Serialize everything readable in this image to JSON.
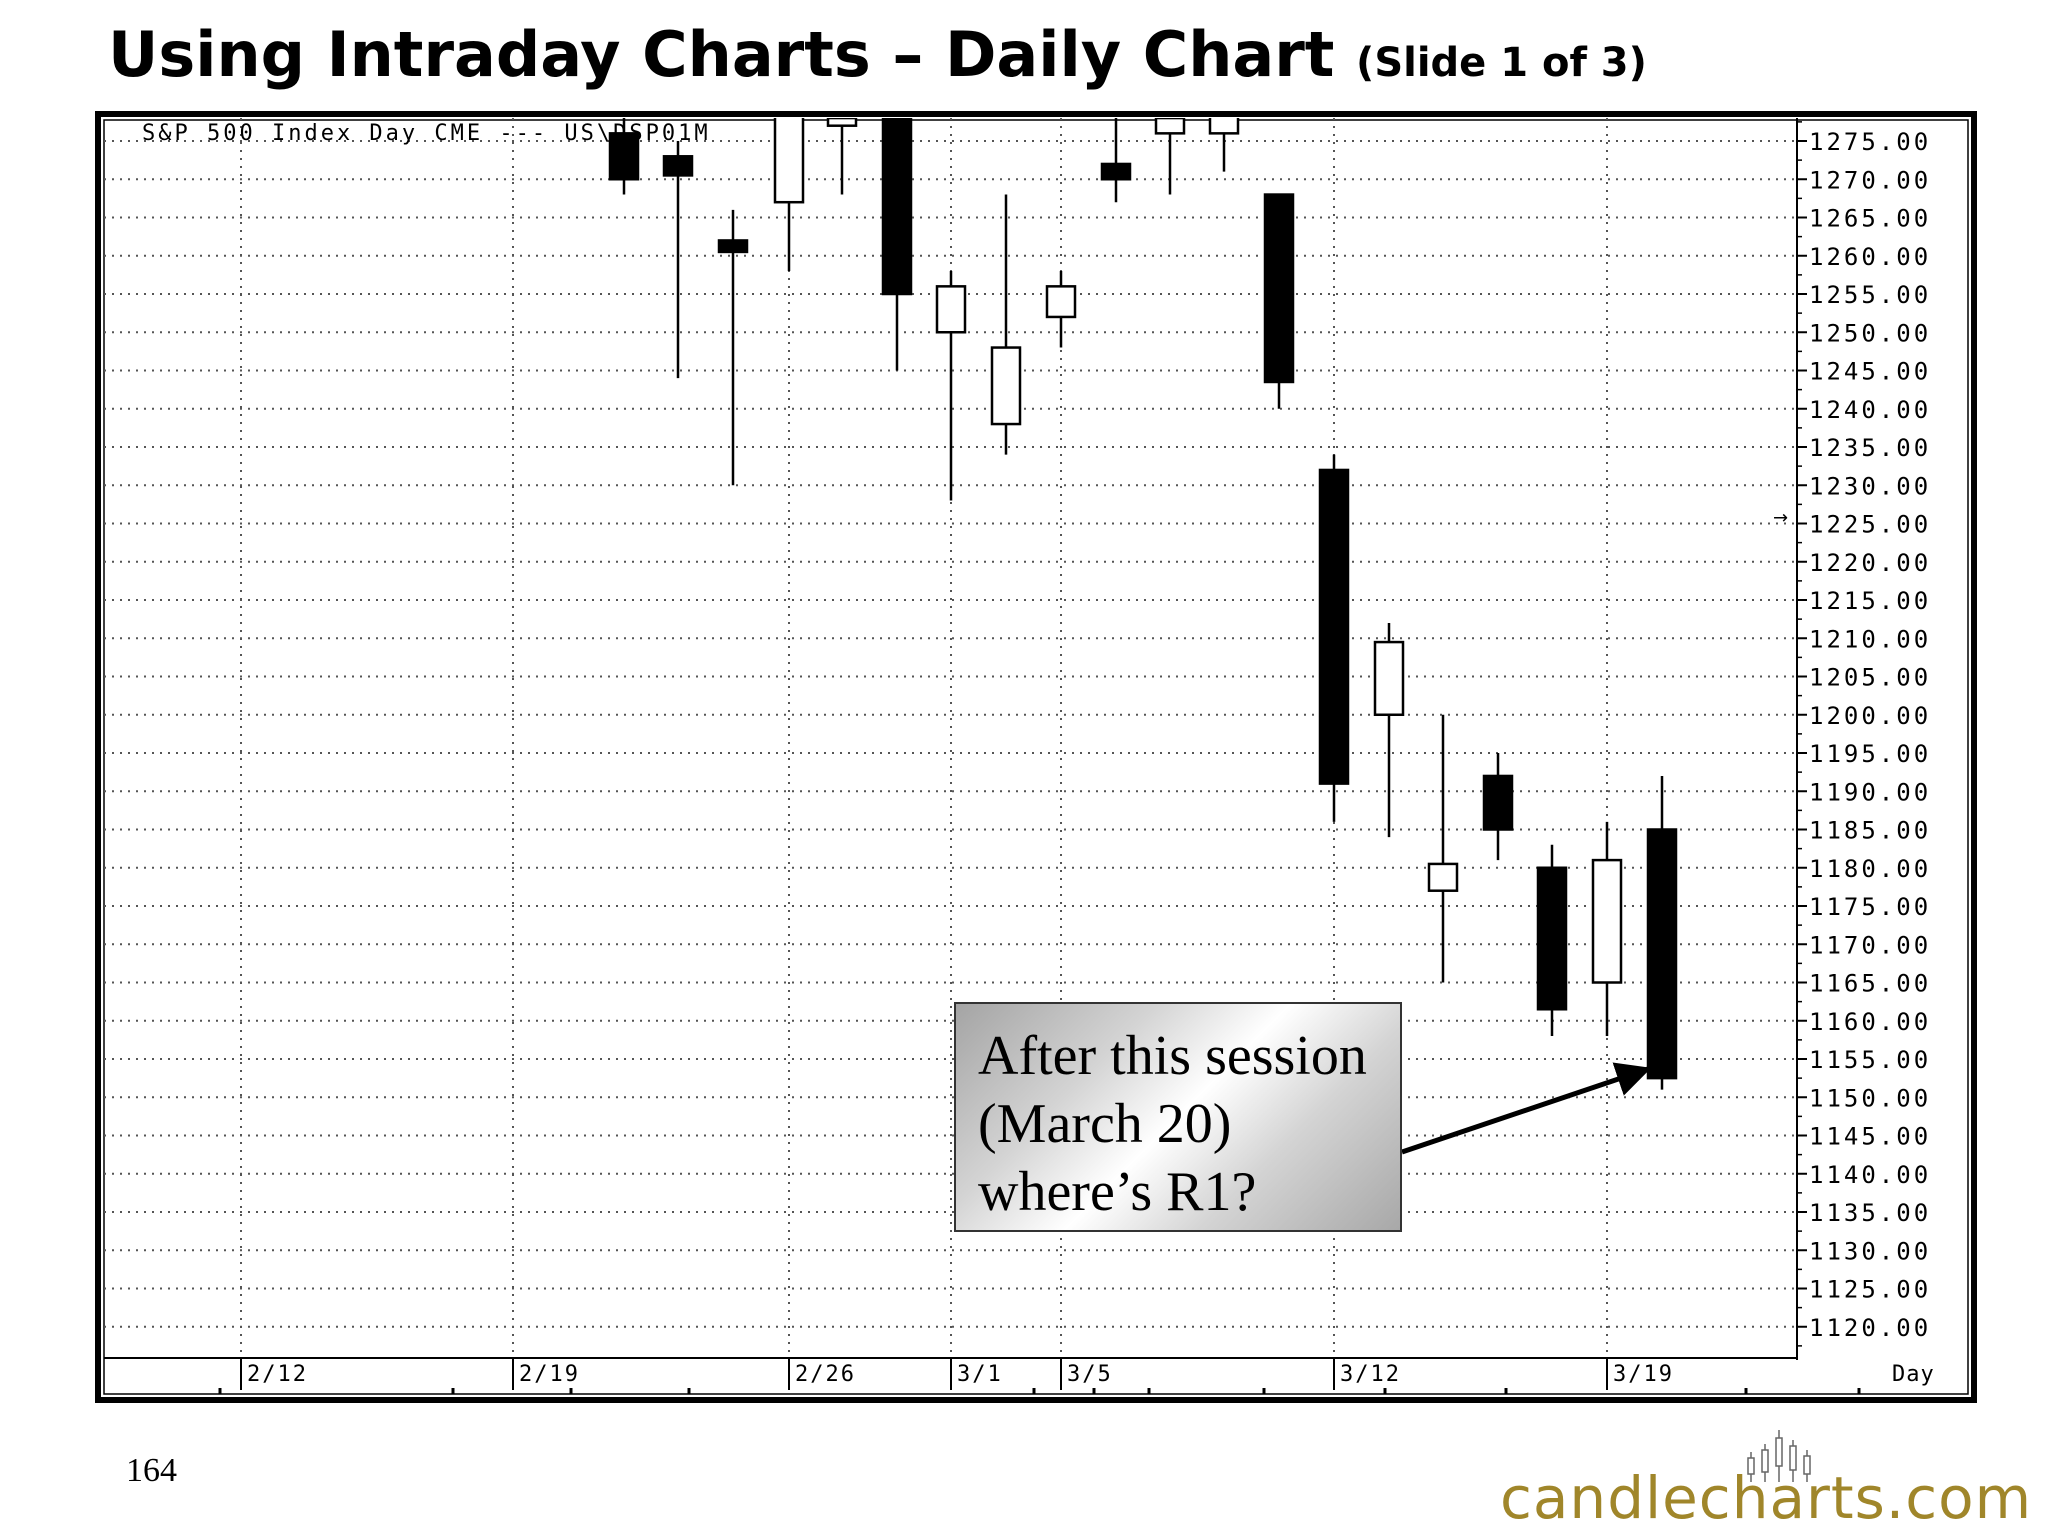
{
  "slide": {
    "title": "Using Intraday Charts – Daily Chart",
    "subtitle": "(Slide 1 of 3)",
    "page_number": "164",
    "logo_text": "candlecharts.com"
  },
  "annotation": {
    "lines": [
      "After this session",
      "(March 20)",
      "where’s R1?"
    ]
  },
  "chart_data": {
    "type": "candlestick",
    "title": "S&P 500 Index Day CME --- US\\DSP01M",
    "x_axis_label": "Day",
    "price_range": [
      1117,
      1278
    ],
    "grid": true,
    "y_ticks": [
      "1275.00",
      "1270.00",
      "1265.00",
      "1260.00",
      "1255.00",
      "1250.00",
      "1245.00",
      "1240.00",
      "1235.00",
      "1230.00",
      "1225.00",
      "1220.00",
      "1215.00",
      "1210.00",
      "1205.00",
      "1200.00",
      "1195.00",
      "1190.00",
      "1185.00",
      "1180.00",
      "1175.00",
      "1170.00",
      "1165.00",
      "1160.00",
      "1155.00",
      "1150.00",
      "1145.00",
      "1140.00",
      "1135.00",
      "1130.00",
      "1125.00",
      "1120.00"
    ],
    "x_labels": [
      {
        "label": "2/12",
        "at": "2/12"
      },
      {
        "label": "2/19",
        "at": "2/19"
      },
      {
        "label": "2/26",
        "at": "2/26"
      },
      {
        "label": "3/1",
        "at": "3/1"
      },
      {
        "label": "3/5",
        "at": "3/5"
      },
      {
        "label": "3/12",
        "at": "3/12"
      },
      {
        "label": "3/19",
        "at": "3/19"
      }
    ],
    "last_price_marker": 1225.8,
    "candles": [
      {
        "date": "2/21",
        "open": 1276,
        "high": 1279,
        "low": 1268,
        "close": 1270
      },
      {
        "date": "2/22",
        "open": 1273,
        "high": 1275,
        "low": 1244,
        "close": 1270.5
      },
      {
        "date": "2/23",
        "open": 1262,
        "high": 1266,
        "low": 1230,
        "close": 1260.5
      },
      {
        "date": "2/26",
        "open": 1267,
        "high": 1283,
        "low": 1258,
        "close": 1280
      },
      {
        "date": "2/27",
        "open": 1277,
        "high": 1283,
        "low": 1268,
        "close": 1278
      },
      {
        "date": "2/28",
        "open": 1280,
        "high": 1287,
        "low": 1245,
        "close": 1255
      },
      {
        "date": "3/1",
        "open": 1250,
        "high": 1258,
        "low": 1228,
        "close": 1256
      },
      {
        "date": "3/2",
        "open": 1238,
        "high": 1268,
        "low": 1234,
        "close": 1248
      },
      {
        "date": "3/5",
        "open": 1252,
        "high": 1258,
        "low": 1248,
        "close": 1256
      },
      {
        "date": "3/6",
        "open": 1272,
        "high": 1280,
        "low": 1267,
        "close": 1270
      },
      {
        "date": "3/7",
        "open": 1276,
        "high": 1282,
        "low": 1268,
        "close": 1278
      },
      {
        "date": "3/8",
        "open": 1276,
        "high": 1282,
        "low": 1271,
        "close": 1280
      },
      {
        "date": "3/9",
        "open": 1268,
        "high": 1268,
        "low": 1240,
        "close": 1243.5
      },
      {
        "date": "3/12",
        "open": 1232,
        "high": 1234,
        "low": 1186,
        "close": 1191
      },
      {
        "date": "3/13",
        "open": 1200,
        "high": 1212,
        "low": 1184,
        "close": 1209.5
      },
      {
        "date": "3/14",
        "open": 1177,
        "high": 1200,
        "low": 1165,
        "close": 1180.5
      },
      {
        "date": "3/15",
        "open": 1192,
        "high": 1195,
        "low": 1181,
        "close": 1185
      },
      {
        "date": "3/16",
        "open": 1180,
        "high": 1183,
        "low": 1158,
        "close": 1161.5
      },
      {
        "date": "3/19",
        "open": 1165,
        "high": 1186,
        "low": 1158,
        "close": 1181
      },
      {
        "date": "3/20",
        "open": 1185,
        "high": 1192,
        "low": 1151,
        "close": 1152.5
      }
    ],
    "colors": {
      "bearish_body": "#000000",
      "bullish_body": "#ffffff",
      "grid": "#555555",
      "frame": "#000000"
    }
  },
  "brand": {
    "text_color": "#a0862a"
  }
}
